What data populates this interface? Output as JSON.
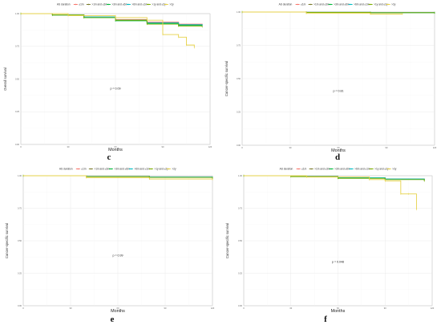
{
  "chart_data": [
    {
      "type": "line",
      "panel_letter": "c",
      "title": "",
      "legend_title": "AS duration",
      "xlabel": "Months",
      "ylabel": "Overall survival",
      "p_value_label": "p = 0.09",
      "xlim": [
        0,
        120
      ],
      "ylim": [
        0,
        1
      ],
      "x_ticks": [
        "0",
        "30",
        "60",
        "90",
        "120"
      ],
      "y_ticks": [
        "0.00",
        "0.25",
        "0.50",
        "0.75",
        "1.00"
      ],
      "grid": true,
      "legend_position": "top",
      "series": [
        {
          "name": "≤1m",
          "color": "#f8766d",
          "x": [
            0,
            20,
            40,
            60,
            80,
            100,
            115
          ],
          "y": [
            1.0,
            0.99,
            0.975,
            0.955,
            0.935,
            0.92,
            0.915
          ]
        },
        {
          "name": ">1m and ≤3m",
          "color": "#7a7a2a",
          "x": [
            0,
            20,
            40,
            60,
            80,
            100,
            115
          ],
          "y": [
            1.0,
            0.99,
            0.97,
            0.95,
            0.93,
            0.915,
            0.91
          ]
        },
        {
          "name": ">3m and ≤6m",
          "color": "#00ba38",
          "x": [
            0,
            20,
            40,
            60,
            80,
            100,
            115
          ],
          "y": [
            1.0,
            0.99,
            0.97,
            0.945,
            0.925,
            0.91,
            0.905
          ]
        },
        {
          "name": ">6m and ≤1m",
          "color": "#00bfc4",
          "x": [
            0,
            20,
            40,
            60,
            80,
            100,
            115
          ],
          "y": [
            1.0,
            0.99,
            0.975,
            0.95,
            0.93,
            0.915,
            0.91
          ]
        },
        {
          "name": ">1y and ≤2y",
          "color": "#7cae00",
          "x": [
            0,
            20,
            40,
            60,
            80,
            100,
            115
          ],
          "y": [
            1.0,
            0.99,
            0.97,
            0.95,
            0.92,
            0.905,
            0.9
          ]
        },
        {
          "name": ">2y",
          "color": "#e6d24a",
          "x": [
            0,
            30,
            60,
            80,
            90,
            100,
            105,
            110
          ],
          "y": [
            1.0,
            0.985,
            0.97,
            0.95,
            0.84,
            0.82,
            0.76,
            0.74
          ]
        }
      ]
    },
    {
      "type": "line",
      "panel_letter": "d",
      "title": "",
      "legend_title": "AS duration",
      "xlabel": "Months",
      "ylabel": "Cancer-specific survival",
      "p_value_label": "p = 0.81",
      "xlim": [
        0,
        120
      ],
      "ylim": [
        0,
        1
      ],
      "x_ticks": [
        "0",
        "30",
        "60",
        "90",
        "120"
      ],
      "y_ticks": [
        "0.00",
        "0.25",
        "0.50",
        "0.75",
        "1.00"
      ],
      "grid": true,
      "legend_position": "top",
      "series": [
        {
          "name": "≤1m",
          "color": "#f8766d",
          "x": [
            0,
            40,
            80,
            120
          ],
          "y": [
            1.0,
            0.998,
            0.996,
            0.995
          ]
        },
        {
          "name": ">1m and ≤3m",
          "color": "#7a7a2a",
          "x": [
            0,
            40,
            80,
            120
          ],
          "y": [
            1.0,
            0.998,
            0.996,
            0.995
          ]
        },
        {
          "name": ">3m and ≤6m",
          "color": "#00ba38",
          "x": [
            0,
            40,
            80,
            120
          ],
          "y": [
            1.0,
            0.997,
            0.995,
            0.994
          ]
        },
        {
          "name": ">6m and ≤1m",
          "color": "#00bfc4",
          "x": [
            0,
            40,
            80,
            120
          ],
          "y": [
            1.0,
            0.998,
            0.996,
            0.995
          ]
        },
        {
          "name": ">1y and ≤2y",
          "color": "#7cae00",
          "x": [
            0,
            40,
            80,
            120
          ],
          "y": [
            1.0,
            0.997,
            0.995,
            0.993
          ]
        },
        {
          "name": ">2y",
          "color": "#e6d24a",
          "x": [
            0,
            40,
            80,
            100
          ],
          "y": [
            1.0,
            0.99,
            0.985,
            0.985
          ]
        }
      ]
    },
    {
      "type": "line",
      "panel_letter": "e",
      "title": "",
      "legend_title": "AS duration",
      "xlabel": "Months",
      "ylabel": "Cancer-specific survival",
      "p_value_label": "p = 0.99",
      "xlim": [
        0,
        120
      ],
      "ylim": [
        0,
        1
      ],
      "x_ticks": [
        "0",
        "30",
        "60",
        "90",
        "120"
      ],
      "y_ticks": [
        "0.00",
        "0.25",
        "0.50",
        "0.75",
        "1.00"
      ],
      "grid": true,
      "legend_position": "top",
      "series": [
        {
          "name": "≤1m",
          "color": "#f8766d",
          "x": [
            0,
            40,
            80,
            120
          ],
          "y": [
            1.0,
            0.995,
            0.99,
            0.985
          ]
        },
        {
          "name": ">1m and ≤3m",
          "color": "#7a7a2a",
          "x": [
            0,
            40,
            80,
            120
          ],
          "y": [
            1.0,
            0.995,
            0.99,
            0.985
          ]
        },
        {
          "name": ">3m and ≤6m",
          "color": "#00ba38",
          "x": [
            0,
            40,
            80,
            120
          ],
          "y": [
            1.0,
            0.994,
            0.988,
            0.983
          ]
        },
        {
          "name": ">6m and ≤1m",
          "color": "#00bfc4",
          "x": [
            0,
            40,
            80,
            120
          ],
          "y": [
            1.0,
            0.995,
            0.99,
            0.985
          ]
        },
        {
          "name": ">1y and ≤2y",
          "color": "#7cae00",
          "x": [
            0,
            40,
            80,
            120
          ],
          "y": [
            1.0,
            0.993,
            0.987,
            0.98
          ]
        },
        {
          "name": ">2y",
          "color": "#e6d24a",
          "x": [
            0,
            40,
            80,
            120
          ],
          "y": [
            1.0,
            0.985,
            0.975,
            0.97
          ]
        }
      ]
    },
    {
      "type": "line",
      "panel_letter": "f",
      "title": "",
      "legend_title": "AS duration",
      "xlabel": "Months",
      "ylabel": "Cancer-specific survival",
      "p_value_label": "p = 0.048",
      "xlim": [
        0,
        120
      ],
      "ylim": [
        0,
        1
      ],
      "x_ticks": [
        "0",
        "30",
        "60",
        "90",
        "120"
      ],
      "y_ticks": [
        "0.00",
        "0.25",
        "0.50",
        "0.75",
        "1.00"
      ],
      "grid": true,
      "legend_position": "top",
      "series": [
        {
          "name": "≤1m",
          "color": "#f8766d",
          "x": [
            0,
            30,
            60,
            90,
            115
          ],
          "y": [
            1.0,
            0.995,
            0.985,
            0.975,
            0.965
          ]
        },
        {
          "name": ">1m and ≤3m",
          "color": "#7a7a2a",
          "x": [
            0,
            30,
            60,
            90,
            115
          ],
          "y": [
            1.0,
            0.995,
            0.985,
            0.975,
            0.968
          ]
        },
        {
          "name": ">3m and ≤6m",
          "color": "#00ba38",
          "x": [
            0,
            30,
            60,
            90,
            115
          ],
          "y": [
            1.0,
            0.994,
            0.982,
            0.972,
            0.962
          ]
        },
        {
          "name": ">6m and ≤1m",
          "color": "#00bfc4",
          "x": [
            0,
            30,
            60,
            90,
            115
          ],
          "y": [
            1.0,
            0.995,
            0.985,
            0.975,
            0.968
          ]
        },
        {
          "name": ">1y and ≤2y",
          "color": "#7cae00",
          "x": [
            0,
            30,
            60,
            90,
            115
          ],
          "y": [
            1.0,
            0.993,
            0.98,
            0.97,
            0.96
          ]
        },
        {
          "name": ">2y",
          "color": "#e6d24a",
          "x": [
            0,
            40,
            80,
            90,
            100,
            105,
            110
          ],
          "y": [
            1.0,
            0.99,
            0.97,
            0.96,
            0.86,
            0.86,
            0.74
          ]
        }
      ]
    }
  ]
}
